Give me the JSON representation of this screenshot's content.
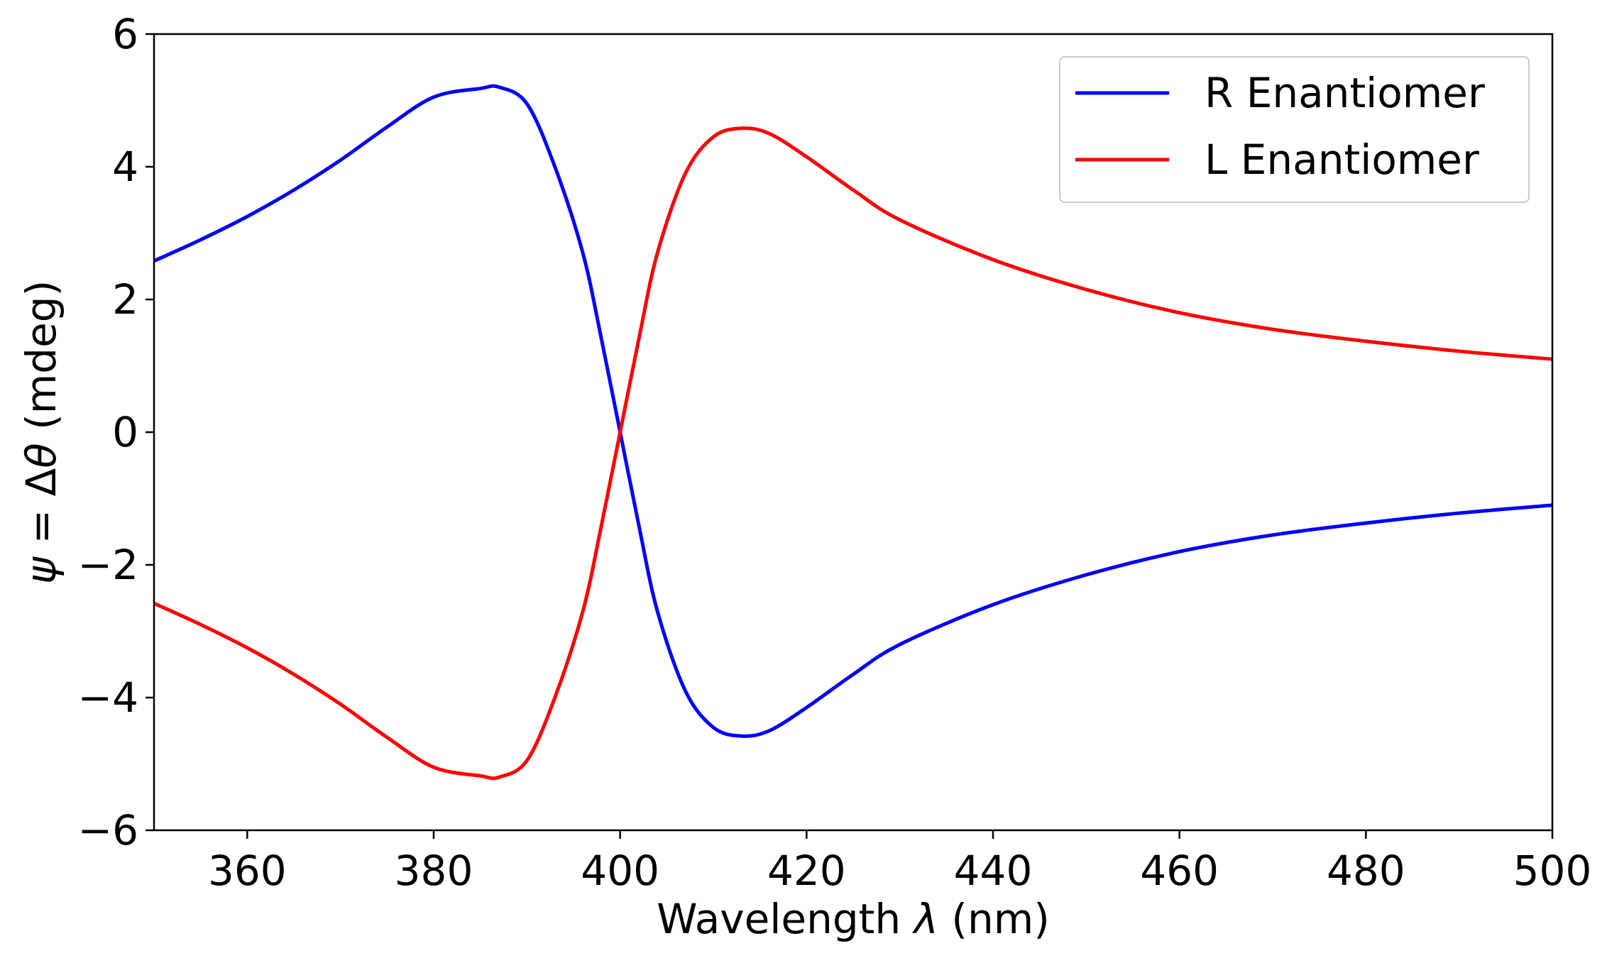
{
  "chart_data": {
    "type": "line",
    "title": "",
    "xlabel": "Wavelength λ (nm)",
    "ylabel": "ψ = Δθ (mdeg)",
    "xlabel_parts": {
      "before": "Wavelength ",
      "symbol": "λ",
      "after": " (nm)"
    },
    "ylabel_parts": {
      "lhs": "ψ",
      "eq": " = Δ",
      "theta": "θ",
      "after": " (mdeg)"
    },
    "xlim": [
      350,
      500
    ],
    "ylim": [
      -6,
      6
    ],
    "xticks": [
      360,
      380,
      400,
      420,
      440,
      460,
      480,
      500
    ],
    "yticks": [
      -6,
      -4,
      -2,
      0,
      2,
      4,
      6
    ],
    "xtick_labels": [
      "360",
      "380",
      "400",
      "420",
      "440",
      "460",
      "480",
      "500"
    ],
    "ytick_labels": [
      "−6",
      "−4",
      "−2",
      "0",
      "2",
      "4",
      "6"
    ],
    "grid": false,
    "legend_position": "top-right",
    "legend": [
      "R Enantiomer",
      "L Enantiomer"
    ],
    "x": [
      350,
      355,
      360,
      365,
      370,
      375,
      380,
      385,
      387,
      390,
      393,
      396,
      398,
      400,
      402,
      404,
      407,
      410,
      413,
      416,
      420,
      425,
      430,
      440,
      450,
      460,
      470,
      480,
      490,
      500
    ],
    "series": [
      {
        "name": "R Enantiomer",
        "color": "#0000ff",
        "values": [
          2.58,
          2.9,
          3.25,
          3.65,
          4.1,
          4.6,
          5.05,
          5.18,
          5.2,
          4.95,
          4.0,
          2.7,
          1.4,
          0.0,
          -1.4,
          -2.7,
          -3.9,
          -4.45,
          -4.58,
          -4.5,
          -4.15,
          -3.65,
          -3.2,
          -2.6,
          -2.15,
          -1.8,
          -1.55,
          -1.37,
          -1.22,
          -1.1
        ]
      },
      {
        "name": "L Enantiomer",
        "color": "#ff0000",
        "values": [
          -2.58,
          -2.9,
          -3.25,
          -3.65,
          -4.1,
          -4.6,
          -5.05,
          -5.18,
          -5.2,
          -4.95,
          -4.0,
          -2.7,
          -1.4,
          0.0,
          1.4,
          2.7,
          3.9,
          4.45,
          4.58,
          4.5,
          4.15,
          3.65,
          3.2,
          2.6,
          2.15,
          1.8,
          1.55,
          1.37,
          1.22,
          1.1
        ]
      }
    ]
  }
}
